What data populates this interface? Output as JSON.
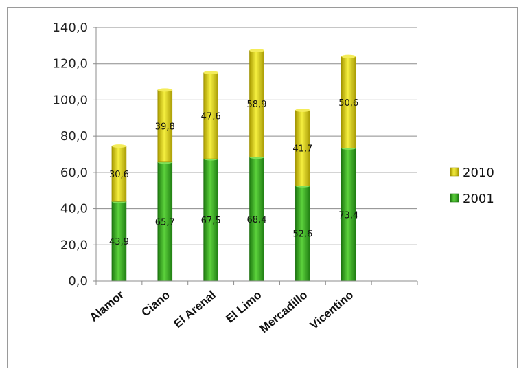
{
  "chart_data": {
    "type": "bar",
    "stacked": true,
    "categories": [
      "Alamor",
      "Ciano",
      "El Arenal",
      "El Limo",
      "Mercadillo",
      "Vicentino"
    ],
    "series": [
      {
        "name": "2001",
        "values": [
          43.9,
          65.7,
          67.5,
          68.4,
          52.6,
          73.4
        ],
        "labels": [
          "43,9",
          "65,7",
          "67,5",
          "68,4",
          "52,6",
          "73,4"
        ],
        "color": "#2f9a1e"
      },
      {
        "name": "2010",
        "values": [
          30.6,
          39.8,
          47.6,
          58.9,
          41.7,
          50.6
        ],
        "labels": [
          "30,6",
          "39,8",
          "47,6",
          "58,9",
          "41,7",
          "50,6"
        ],
        "color": "#d2c814"
      }
    ],
    "yticks": [
      "0,0",
      "20,0",
      "40,0",
      "60,0",
      "80,0",
      "100,0",
      "120,0",
      "140,0"
    ],
    "ylim": [
      0,
      140
    ],
    "ystep": 20,
    "grid": true,
    "legend_position": "right",
    "legend_order": [
      "2010",
      "2001"
    ],
    "title": "",
    "xlabel": "",
    "ylabel": ""
  }
}
